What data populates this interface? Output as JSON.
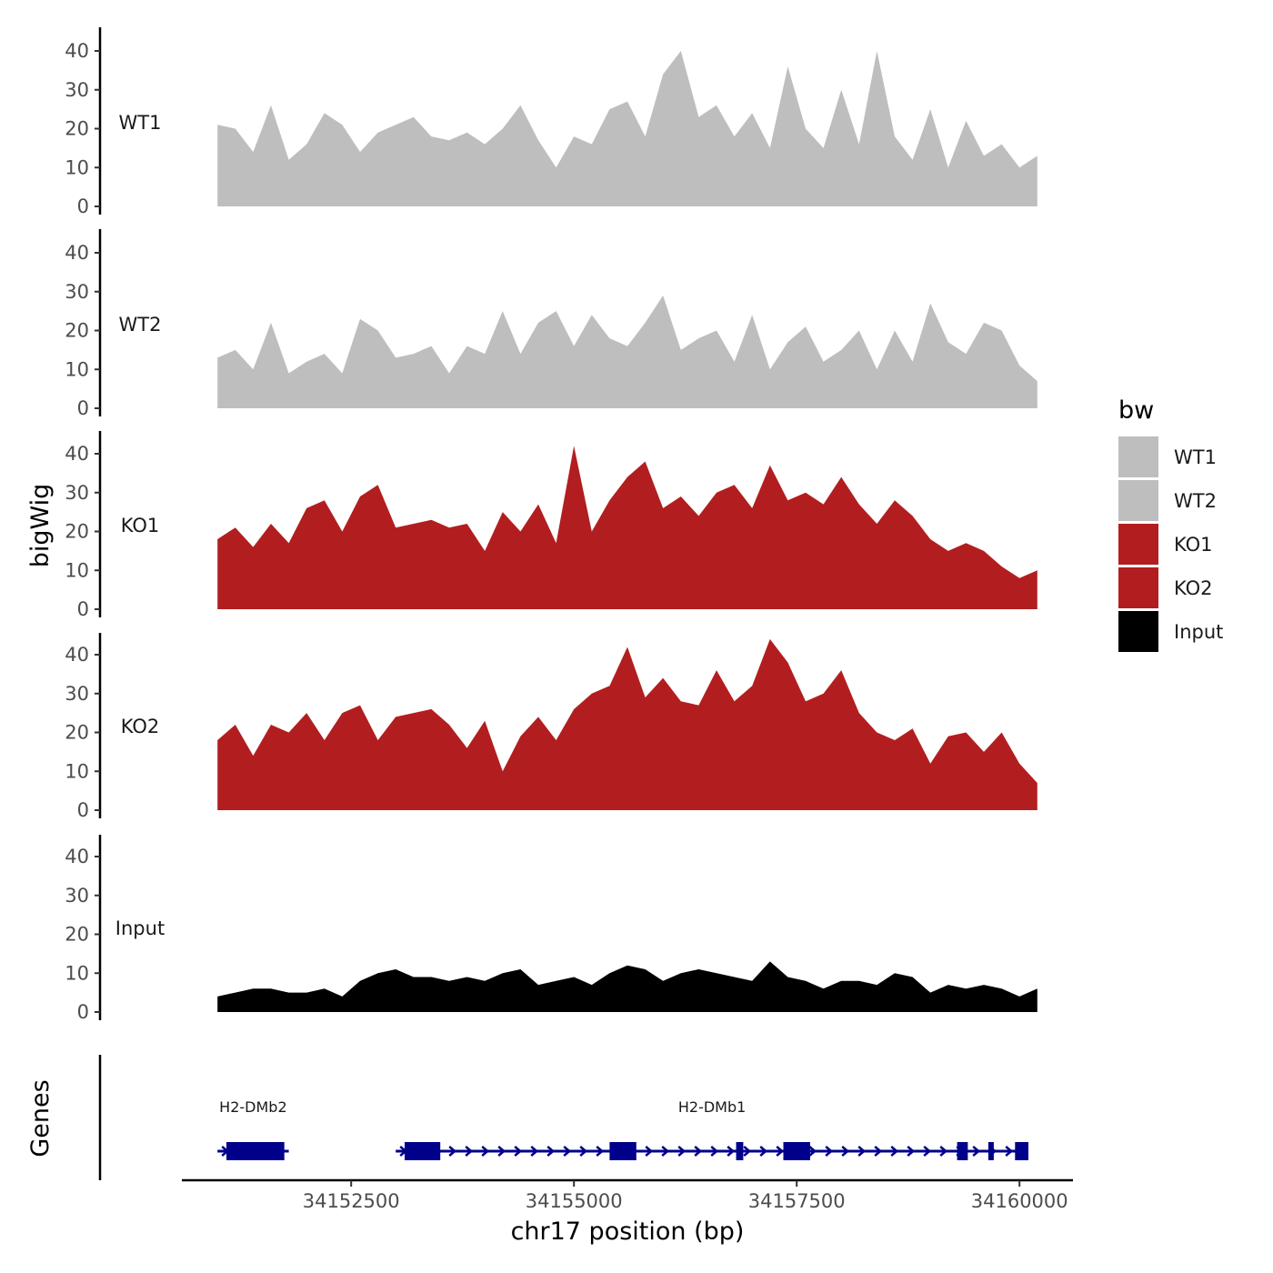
{
  "chart_data": {
    "type": "area",
    "ylabel": "bigWig",
    "xlabel": "chr17 position (bp)",
    "genes_label": "Genes",
    "xlim": [
      34150600,
      34160600
    ],
    "ylim": [
      0,
      45
    ],
    "yticks": [
      0,
      10,
      20,
      30,
      40
    ],
    "xticks": [
      34152500,
      34155000,
      34157500,
      34160000
    ],
    "x": [
      34151000,
      34151200,
      34151400,
      34151600,
      34151800,
      34152000,
      34152200,
      34152400,
      34152600,
      34152800,
      34153000,
      34153200,
      34153400,
      34153600,
      34153800,
      34154000,
      34154200,
      34154400,
      34154600,
      34154800,
      34155000,
      34155200,
      34155400,
      34155600,
      34155800,
      34156000,
      34156200,
      34156400,
      34156600,
      34156800,
      34157000,
      34157200,
      34157400,
      34157600,
      34157800,
      34158000,
      34158200,
      34158400,
      34158600,
      34158800,
      34159000,
      34159200,
      34159400,
      34159600,
      34159800,
      34160000,
      34160200
    ],
    "series": [
      {
        "name": "WT1",
        "color": "#bebebe",
        "values": [
          21,
          20,
          14,
          26,
          12,
          16,
          24,
          21,
          14,
          19,
          21,
          23,
          18,
          17,
          19,
          16,
          20,
          26,
          17,
          10,
          18,
          16,
          25,
          27,
          18,
          34,
          40,
          23,
          26,
          18,
          24,
          15,
          36,
          20,
          15,
          30,
          16,
          40,
          18,
          12,
          25,
          10,
          22,
          13,
          16,
          10,
          13
        ]
      },
      {
        "name": "WT2",
        "color": "#bebebe",
        "values": [
          13,
          15,
          10,
          22,
          9,
          12,
          14,
          9,
          23,
          20,
          13,
          14,
          16,
          9,
          16,
          14,
          25,
          14,
          22,
          25,
          16,
          24,
          18,
          16,
          22,
          29,
          15,
          18,
          20,
          12,
          24,
          10,
          17,
          21,
          12,
          15,
          20,
          10,
          20,
          12,
          27,
          17,
          14,
          22,
          20,
          11,
          7
        ]
      },
      {
        "name": "KO1",
        "color": "#b21e1f",
        "values": [
          18,
          21,
          16,
          22,
          17,
          26,
          28,
          20,
          29,
          32,
          21,
          22,
          23,
          21,
          22,
          15,
          25,
          20,
          27,
          17,
          42,
          20,
          28,
          34,
          38,
          26,
          29,
          24,
          30,
          32,
          26,
          37,
          28,
          30,
          27,
          34,
          27,
          22,
          28,
          24,
          18,
          15,
          17,
          15,
          11,
          8,
          10
        ]
      },
      {
        "name": "KO2",
        "color": "#b21e1f",
        "values": [
          18,
          22,
          14,
          22,
          20,
          25,
          18,
          25,
          27,
          18,
          24,
          25,
          26,
          22,
          16,
          23,
          10,
          19,
          24,
          18,
          26,
          30,
          32,
          42,
          29,
          34,
          28,
          27,
          36,
          28,
          32,
          44,
          38,
          28,
          30,
          36,
          25,
          20,
          18,
          21,
          12,
          19,
          20,
          15,
          20,
          12,
          7
        ]
      },
      {
        "name": "Input",
        "color": "#000000",
        "values": [
          4,
          5,
          6,
          6,
          5,
          5,
          6,
          4,
          8,
          10,
          11,
          9,
          9,
          8,
          9,
          8,
          10,
          11,
          7,
          8,
          9,
          7,
          10,
          12,
          11,
          8,
          10,
          11,
          10,
          9,
          8,
          13,
          9,
          8,
          6,
          8,
          8,
          7,
          10,
          9,
          5,
          7,
          6,
          7,
          6,
          4,
          6
        ]
      }
    ],
    "genes": [
      {
        "name": "H2-DMb2",
        "start": 34151000,
        "end": 34151800,
        "exons": [
          [
            34151100,
            34151750
          ]
        ]
      },
      {
        "name": "H2-DMb1",
        "start": 34153000,
        "end": 34160100,
        "exons": [
          [
            34153100,
            34153500
          ],
          [
            34155400,
            34155700
          ],
          [
            34156820,
            34156900
          ],
          [
            34157350,
            34157650
          ],
          [
            34159300,
            34159420
          ],
          [
            34159650,
            34159700
          ],
          [
            34159950,
            34160100
          ]
        ]
      }
    ],
    "legend": {
      "title": "bw",
      "position": "right"
    }
  }
}
